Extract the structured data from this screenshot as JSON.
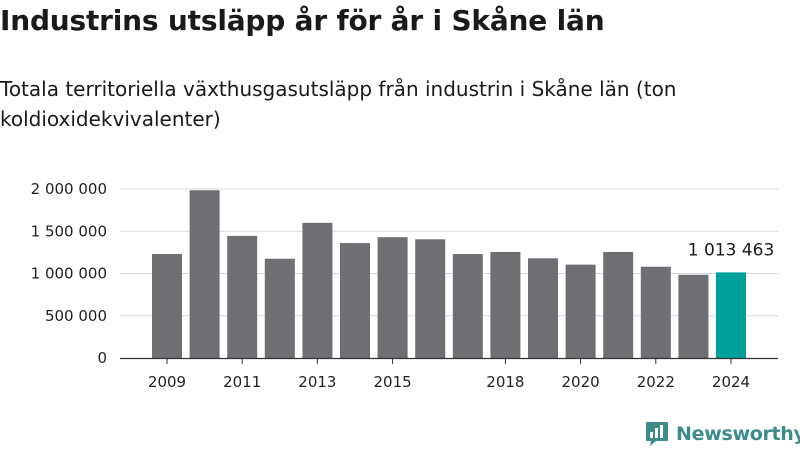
{
  "header": {
    "title": "Industrins utsläpp år för år i Skåne län",
    "subtitle": "Totala territoriella växthusgasutsläpp från industrin i Skåne län (ton koldioxidekvivalenter)"
  },
  "brand": {
    "name": "Newsworthy",
    "icon": "bar-chart-logo-icon",
    "color": "#3d8b8b"
  },
  "colors": {
    "bar": "#6e6e73",
    "highlight": "#00a19a",
    "grid": "#d9d9d9",
    "axis": "#333333"
  },
  "chart_data": {
    "type": "bar",
    "title": "Industrins utsläpp år för år i Skåne län",
    "subtitle": "Totala territoriella växthusgasutsläpp från industrin i Skåne län (ton koldioxidekvivalenter)",
    "x": [
      2009,
      2010,
      2011,
      2012,
      2013,
      2014,
      2015,
      2016,
      2017,
      2018,
      2019,
      2020,
      2021,
      2022,
      2023,
      2024
    ],
    "values": [
      1230000,
      1985000,
      1445000,
      1175000,
      1600000,
      1360000,
      1430000,
      1405000,
      1230000,
      1255000,
      1180000,
      1105000,
      1255000,
      1080000,
      985000,
      1013463
    ],
    "x_tick_labels": [
      "2009",
      "2011",
      "2013",
      "2015",
      "2018",
      "2020",
      "2022",
      "2024"
    ],
    "y_ticks": [
      0,
      500000,
      1000000,
      1500000,
      2000000
    ],
    "y_tick_labels": [
      "0",
      "500 000",
      "1 000 000",
      "1 500 000",
      "2 000 000"
    ],
    "ylim": [
      0,
      2000000
    ],
    "grid": true,
    "highlight_index": 15,
    "annotations": [
      {
        "index": 15,
        "text": "1 013 463"
      }
    ]
  }
}
